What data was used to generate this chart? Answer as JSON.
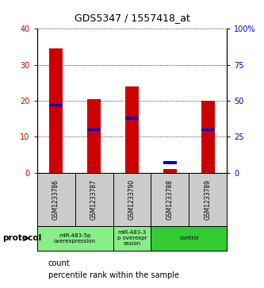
{
  "title": "GDS5347 / 1557418_at",
  "samples": [
    "GSM1233786",
    "GSM1233787",
    "GSM1233790",
    "GSM1233788",
    "GSM1233789"
  ],
  "counts": [
    34.5,
    20.5,
    24.0,
    1.0,
    20.0
  ],
  "percentiles": [
    47,
    30,
    38,
    7,
    30
  ],
  "bar_color": "#cc0000",
  "marker_color": "#0000cc",
  "ylim_left": [
    0,
    40
  ],
  "ylim_right": [
    0,
    100
  ],
  "yticks_left": [
    0,
    10,
    20,
    30,
    40
  ],
  "yticks_right": [
    0,
    25,
    50,
    75,
    100
  ],
  "ytick_labels_left": [
    "0",
    "10",
    "20",
    "30",
    "40"
  ],
  "ytick_labels_right": [
    "0",
    "25",
    "50",
    "75",
    "100%"
  ],
  "protocol_groups": [
    {
      "label": "miR-483-5p\noverexpression",
      "start": 0,
      "end": 2,
      "color": "#88ee88"
    },
    {
      "label": "miR-483-3\np overexpr\nession",
      "start": 2,
      "end": 3,
      "color": "#88ee88"
    },
    {
      "label": "control",
      "start": 3,
      "end": 5,
      "color": "#33cc33"
    }
  ],
  "protocol_label": "protocol",
  "legend_count_label": "count",
  "legend_percentile_label": "percentile rank within the sample",
  "bar_width": 0.35,
  "tick_label_color_left": "#cc0000",
  "tick_label_color_right": "#0000cc",
  "sample_box_color": "#cccccc",
  "fig_width": 3.33,
  "fig_height": 3.63,
  "dpi": 100
}
